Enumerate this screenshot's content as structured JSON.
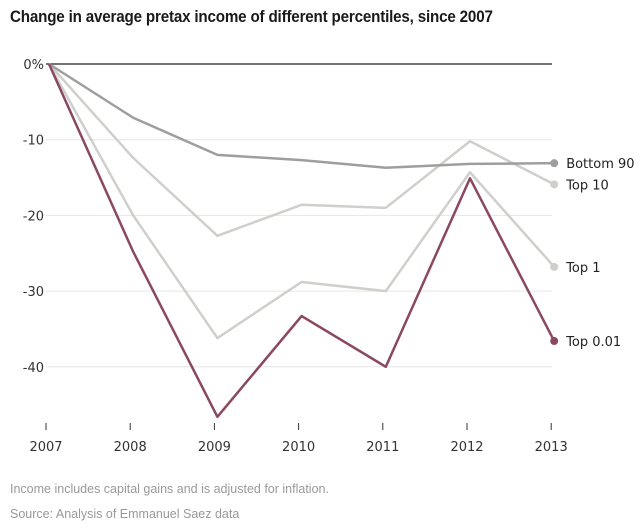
{
  "chart_data": {
    "type": "line",
    "title": "Change in average pretax income of different percentiles, since 2007",
    "xlabel": "",
    "ylabel": "",
    "x": [
      "2007",
      "2008",
      "2009",
      "2010",
      "2011",
      "2012",
      "2013"
    ],
    "ylim": [
      -47,
      0
    ],
    "yticks": [
      0,
      -10,
      -20,
      -30,
      -40
    ],
    "ytick_labels": [
      "0%",
      "-10",
      "-20",
      "-30",
      "-40"
    ],
    "grid": true,
    "legend": "inline-right",
    "series": [
      {
        "name": "Bottom 90",
        "color": "#9e9e9e",
        "values": [
          0,
          -7.1,
          -12.0,
          -12.7,
          -13.7,
          -13.2,
          -13.1
        ]
      },
      {
        "name": "Top 10",
        "color": "#cfcfcb",
        "values": [
          0,
          -12.4,
          -22.7,
          -18.6,
          -19.0,
          -10.2,
          -15.9
        ]
      },
      {
        "name": "Top 1",
        "color": "#cfcfcb",
        "values": [
          0,
          -20.0,
          -36.2,
          -28.8,
          -30.0,
          -14.3,
          -26.8
        ]
      },
      {
        "name": "Top 0.01",
        "color": "#8a4862",
        "values": [
          0,
          -24.8,
          -46.6,
          -33.3,
          -40.0,
          -15.1,
          -36.6
        ]
      }
    ]
  },
  "footnotes": {
    "note": "Income includes capital gains and is adjusted for inflation.",
    "source": "Source: Analysis of Emmanuel Saez data"
  }
}
